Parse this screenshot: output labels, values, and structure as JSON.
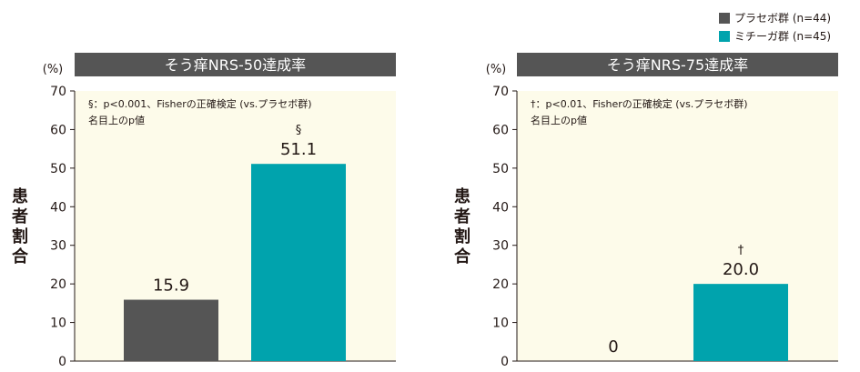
{
  "legend": [
    {
      "label": "プラセボ群 (n=44)",
      "color": "#555555"
    },
    {
      "label": "ミチーガ群 (n=45)",
      "color": "#00a3ad"
    }
  ],
  "chart_data": [
    {
      "type": "bar",
      "title": "そう痒NRS-50達成率",
      "ylabel": "患者割合",
      "yunit": "(%)",
      "ylim": [
        0,
        70
      ],
      "yticks": [
        0,
        10,
        20,
        30,
        40,
        50,
        60,
        70
      ],
      "note_line1": "§：p<0.001、Fisherの正確検定 (vs.プラセボ群)",
      "note_line2": "名目上のp値",
      "grid": false,
      "bars": [
        {
          "series": "プラセボ群",
          "value": 15.9,
          "label": "15.9",
          "mark": "",
          "color": "#555555"
        },
        {
          "series": "ミチーガ群",
          "value": 51.1,
          "label": "51.1",
          "mark": "§",
          "color": "#00a3ad"
        }
      ]
    },
    {
      "type": "bar",
      "title": "そう痒NRS-75達成率",
      "ylabel": "患者割合",
      "yunit": "(%)",
      "ylim": [
        0,
        70
      ],
      "yticks": [
        0,
        10,
        20,
        30,
        40,
        50,
        60,
        70
      ],
      "note_line1": "†：p<0.01、Fisherの正確検定 (vs.プラセボ群)",
      "note_line2": "名目上のp値",
      "grid": false,
      "bars": [
        {
          "series": "プラセボ群",
          "value": 0,
          "label": "0",
          "mark": "",
          "color": "#555555"
        },
        {
          "series": "ミチーガ群",
          "value": 20.0,
          "label": "20.0",
          "mark": "†",
          "color": "#00a3ad"
        }
      ]
    }
  ]
}
